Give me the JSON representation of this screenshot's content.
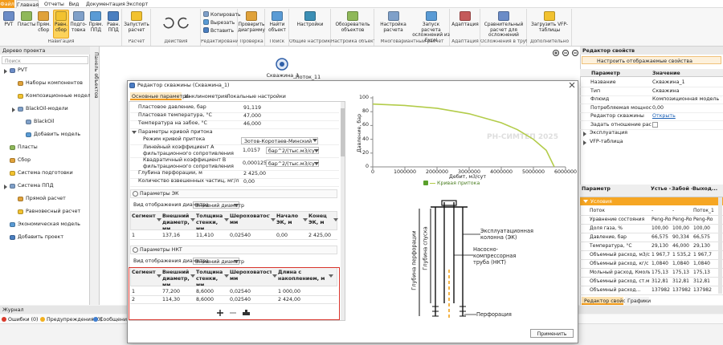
{
  "menu": {
    "tabs": [
      "Файл",
      "Главная",
      "Отчеты",
      "Вид",
      "Документация",
      "Экспорт"
    ]
  },
  "ribbon": {
    "groups": [
      {
        "label": "Навигация",
        "buttons": [
          "PVT",
          "Пласты",
          "Прям. сбор",
          "Равн. сбор",
          "Подго-товка",
          "Прям. ППД",
          "Равн. ППД"
        ]
      },
      {
        "label": "Расчет",
        "buttons": [
          "Запустить расчет"
        ]
      },
      {
        "label": "Действия"
      },
      {
        "label": "Редактирование",
        "buttons": [
          "Копировать",
          "Вырезать",
          "Вставить"
        ]
      },
      {
        "label": "Проверка",
        "buttons": [
          "Проверить диаграмму"
        ]
      },
      {
        "label": "Поиск",
        "buttons": [
          "Найти объект"
        ]
      },
      {
        "label": "Общие настройки",
        "buttons": [
          "Настройки"
        ]
      },
      {
        "label": "Настройка объектов",
        "buttons": [
          "Обозреватель объектов"
        ]
      },
      {
        "label": "Многовариантный расчет",
        "buttons": [
          "Настройка расчета",
          "Запуск расчета осложнений из Excel"
        ]
      },
      {
        "label": "Адаптация",
        "buttons": [
          "Адаптация"
        ]
      },
      {
        "label": "Осложнения в трубах",
        "buttons": [
          "Сравнительный расчет для осложнений"
        ]
      },
      {
        "label": "Дополнительно",
        "buttons": [
          "Загрузить VFP-таблицы"
        ]
      }
    ]
  },
  "project_tree": {
    "title": "Дерево проекта",
    "search": "Поиск",
    "items": [
      {
        "label": "PVT",
        "children": [
          {
            "label": "Наборы компонентов"
          },
          {
            "label": "Композиционные модели"
          },
          {
            "label": "BlackOil-модели",
            "children": [
              {
                "label": "BlackOil"
              },
              {
                "label": "Добавить модель"
              }
            ]
          }
        ]
      },
      {
        "label": "Пласты"
      },
      {
        "label": "Сбор"
      },
      {
        "label": "Система подготовки"
      },
      {
        "label": "Система ППД",
        "children": [
          {
            "label": "Прямой расчет"
          },
          {
            "label": "Равновесный расчет"
          }
        ]
      },
      {
        "label": "Экономическая модель"
      },
      {
        "label": "Добавить проект"
      }
    ]
  },
  "objects_panel": {
    "title": "Панель объектов"
  },
  "canvas": {
    "node": "Скважина_1",
    "link": "Поток_11"
  },
  "properties": {
    "title": "Редактор свойств",
    "configure": "Настроить отображаемые свойства",
    "columns": [
      "Параметр",
      "Значение"
    ],
    "rows": [
      {
        "name": "Название",
        "value": "Скважина_1"
      },
      {
        "name": "Тип",
        "value": "Скважина"
      },
      {
        "name": "Флюид",
        "value": "Композиционная модель 1"
      },
      {
        "name": "Потребляемая мощность...",
        "value": "0,00"
      },
      {
        "name": "Редактор скважины",
        "value": "Открыть"
      },
      {
        "name": "Задать отношение расход..."
      }
    ],
    "groups": [
      "Эксплуатация",
      "VFP-таблица"
    ]
  },
  "results": {
    "columns": [
      "Параметр",
      "Устье - ...",
      "Забой - ...",
      "Выход..."
    ],
    "group": "Условия",
    "rows": [
      [
        "Поток",
        "-",
        "-",
        "Поток_1"
      ],
      [
        "Уравнение состояния",
        "Peng-Ro",
        "Peng-Ro",
        "Peng-Ro"
      ],
      [
        "Доля газа, %",
        "100,00",
        "100,00",
        "100,00"
      ],
      [
        "Давление, бар",
        "66,575",
        "90,334",
        "66,575"
      ],
      [
        "Температура, °С",
        "29,130",
        "46,000",
        "29,130"
      ],
      [
        "Объемный расход, м3/сут",
        "1 967,7",
        "1 535,2",
        "1 967,7"
      ],
      [
        "Объемный расход, кг/с",
        "1,0840",
        "1,0840",
        "1,0840"
      ],
      [
        "Мольный расход, Кмоль...",
        "175,13",
        "175,13",
        "175,13"
      ],
      [
        "Объемный расход, ст.м3...",
        "312,81",
        "312,81",
        "312,81"
      ],
      [
        "Объемный расход...",
        "137982",
        "137982",
        "137982"
      ]
    ]
  },
  "bottom_tabs": [
    "Редактор свойств",
    "Графики"
  ],
  "journal": {
    "title": "Журнал",
    "filters": [
      "Ошибки (0)",
      "Предупреждения (0)",
      "Сообщения"
    ]
  },
  "well_editor": {
    "title": "Редактор скважины (Скважина_1)",
    "tabs": [
      "Основные параметры",
      "Инклинометрия",
      "Локальные настройки"
    ],
    "params": [
      {
        "name": "Пластовое давление, бар",
        "value": "91,119"
      },
      {
        "name": "Пластовая температура, °С",
        "value": "47,000"
      },
      {
        "name": "Температура на забое, °С",
        "value": "46,000"
      }
    ],
    "ipr": {
      "title": "Параметры кривой притока",
      "rows": [
        {
          "name": "Режим кривой притока",
          "value": "Зотов-Коротаев-Минский"
        },
        {
          "name": "Линейный коэффициент А фильтрационного сопротивления",
          "value": "1,0157",
          "unit": "бар^2/(тыс.м3/сут)"
        },
        {
          "name": "Квадратичный коэффициент B фильтрационного сопротивления",
          "value": "0,000125",
          "unit": "бар^2/(тыс.м3/сут)^2"
        }
      ]
    },
    "params2": [
      {
        "name": "Глубина перфорации, м",
        "value": "2 425,00"
      },
      {
        "name": "Количество взвешенных частиц, мг/л",
        "value": "0,00"
      }
    ],
    "ek": {
      "title": "Параметры ЭК",
      "display_label": "Вид отображения диаметра",
      "display_value": "Внешний диаметр",
      "columns": [
        "Сегмент",
        "Внешний диаметр, мм",
        "Толщина стенки, мм",
        "Шероховатость, мм",
        "Начало ЭК, м",
        "Конец ЭК, м"
      ],
      "rows": [
        [
          "1",
          "137,16",
          "11,410",
          "0,02540",
          "0,00",
          "2 425,00"
        ]
      ]
    },
    "nkt": {
      "title": "Параметры НКТ",
      "display_label": "Вид отображения диаметра",
      "display_value": "Внешний диаметр",
      "columns": [
        "Сегмент",
        "Внешний диаметр, мм",
        "Толщина стенки, мм",
        "Шероховатость, мм",
        "Длина с накоплением, м"
      ],
      "rows": [
        [
          "1",
          "77,200",
          "8,6000",
          "0,02540",
          "1 000,00"
        ],
        [
          "2",
          "114,30",
          "8,6000",
          "0,02540",
          "2 424,00"
        ]
      ]
    },
    "chart": {
      "type": "line",
      "y_label": "Давление, бар",
      "x_label": "Дебит, м3/сут",
      "xlim": [
        0,
        6000000
      ],
      "ylim": [
        0,
        100
      ],
      "xticks": [
        0,
        1000000,
        2000000,
        3000000,
        4000000,
        5000000,
        6000000
      ],
      "yticks": [
        0,
        20,
        40,
        60,
        80,
        100
      ],
      "grid": false,
      "watermark": "РН-СИМТЕП 2025",
      "series": [
        {
          "name": "Кривая притока",
          "color": "#b3cc4a",
          "x": [
            0,
            1000000,
            2000000,
            3000000,
            4000000,
            4500000,
            5000000,
            5400000,
            5650000
          ],
          "values": [
            91.1,
            89,
            85,
            77,
            64,
            54,
            40,
            24,
            0
          ]
        }
      ]
    },
    "diagram": {
      "perforation_depth": "Глубина перфорации",
      "run_depth": "Глубина спуска",
      "casing": "Эксплуатационная колонна (ЭК)",
      "tubing": "Насосно-компрессорная труба (НКТ)",
      "perforation": "Перфорация"
    },
    "apply": "Применить"
  }
}
